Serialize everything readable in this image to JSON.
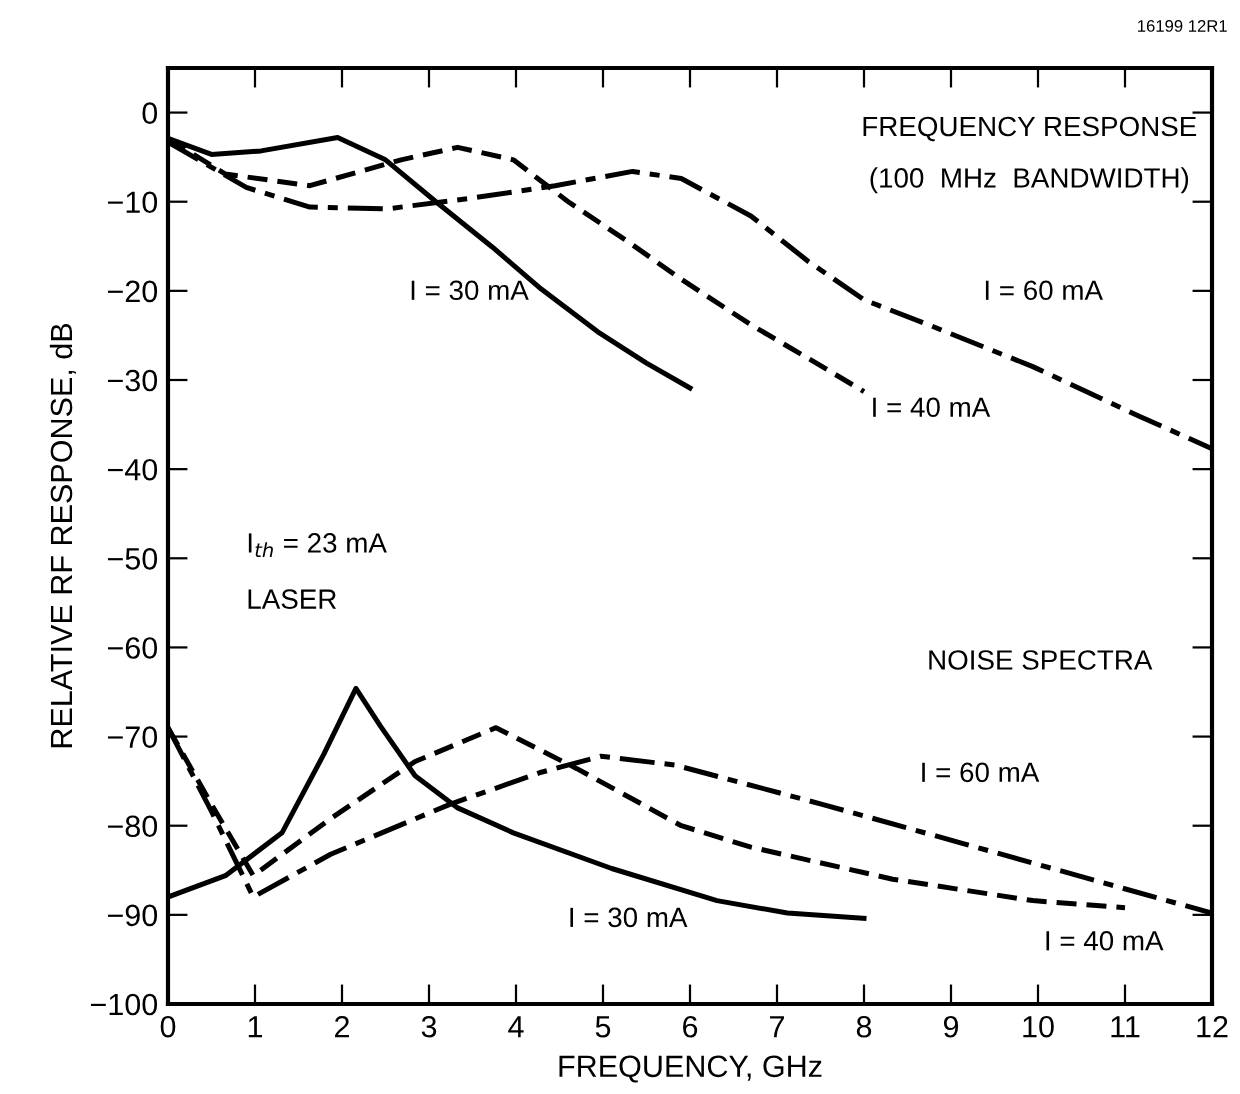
{
  "chart_data": {
    "type": "line",
    "xlabel": "FREQUENCY, GHz",
    "ylabel": "RELATIVE RF RESPONSE, dB",
    "xlim": [
      0,
      12
    ],
    "ylim": [
      -100,
      5
    ],
    "xticks": [
      0,
      1,
      2,
      3,
      4,
      5,
      6,
      7,
      8,
      9,
      10,
      11,
      12
    ],
    "yticks": [
      -100,
      -90,
      -80,
      -70,
      -60,
      -50,
      -40,
      -30,
      -20,
      -10,
      0
    ],
    "grid": false,
    "marker": "none",
    "series": [
      {
        "color": "#000000",
        "line_style": "solid",
        "x": [
          0,
          0.5,
          1.07,
          1.95,
          2.5,
          3.08,
          3.73,
          4.29,
          4.94,
          5.5,
          6.0
        ],
        "values": [
          -2.9,
          -4.7,
          -4.3,
          -2.8,
          -5.3,
          -10,
          -15.1,
          -19.8,
          -24.6,
          -28.1,
          -30.9
        ]
      },
      {
        "color": "#000000",
        "line_style": "dashed",
        "x": [
          0,
          0.66,
          1.63,
          2.68,
          3.33,
          3.97,
          4.6,
          5.26,
          5.9,
          6.7,
          7.52,
          8.0
        ],
        "values": [
          -2.9,
          -6.9,
          -8.2,
          -5.3,
          -3.9,
          -5.3,
          -10,
          -14.3,
          -18.7,
          -23.8,
          -28.5,
          -31.3
        ]
      },
      {
        "color": "#000000",
        "line_style": "dashdot",
        "x": [
          0,
          0.9,
          1.63,
          2.52,
          3.49,
          4.45,
          5.34,
          5.9,
          6.7,
          7.36,
          8.0,
          8.74,
          9.94,
          11.15,
          12
        ],
        "values": [
          -3.3,
          -8.4,
          -10.6,
          -10.8,
          -9.6,
          -8.2,
          -6.6,
          -7.4,
          -11.6,
          -16.7,
          -21,
          -23.8,
          -28.5,
          -34,
          -37.7
        ]
      },
      {
        "color": "#000000",
        "line_style": "solid",
        "x": [
          0,
          0.66,
          1.31,
          1.79,
          2.16,
          2.44,
          2.84,
          3.33,
          3.97,
          5.1,
          6.31,
          7.12,
          8.0
        ],
        "values": [
          -88,
          -85.6,
          -80.8,
          -72,
          -64.6,
          -68.8,
          -74.4,
          -78,
          -80.8,
          -84.8,
          -88.4,
          -89.8,
          -90.4
        ]
      },
      {
        "color": "#000000",
        "line_style": "dashed",
        "x": [
          0,
          0.5,
          0.98,
          1.87,
          2.84,
          3.77,
          4.7,
          5.9,
          6.7,
          8.33,
          9.94,
          11.0
        ],
        "values": [
          -69,
          -77.6,
          -85.6,
          -79.2,
          -72.8,
          -69,
          -73.6,
          -80,
          -82.4,
          -86,
          -88.4,
          -89.2
        ]
      },
      {
        "color": "#000000",
        "line_style": "dashdot",
        "x": [
          0,
          0.5,
          0.98,
          1.87,
          3.24,
          4.29,
          4.98,
          5.83,
          7.52,
          9.14,
          10.75,
          12
        ],
        "values": [
          -69,
          -78.4,
          -88,
          -83.2,
          -77.6,
          -74,
          -72.2,
          -73.2,
          -77.6,
          -82,
          -86.4,
          -89.8
        ]
      }
    ],
    "annotations": [
      "16199 12R1",
      "FREQUENCY RESPONSE",
      "(100  MHz  BANDWIDTH)",
      "I$_{th}$ = 23 mA",
      "LASER",
      "NOISE SPECTRA",
      "I = 30 mA",
      "I = 40 mA",
      "I = 60 mA",
      "I = 30 mA",
      "I = 40 mA",
      "I = 60 mA"
    ]
  }
}
